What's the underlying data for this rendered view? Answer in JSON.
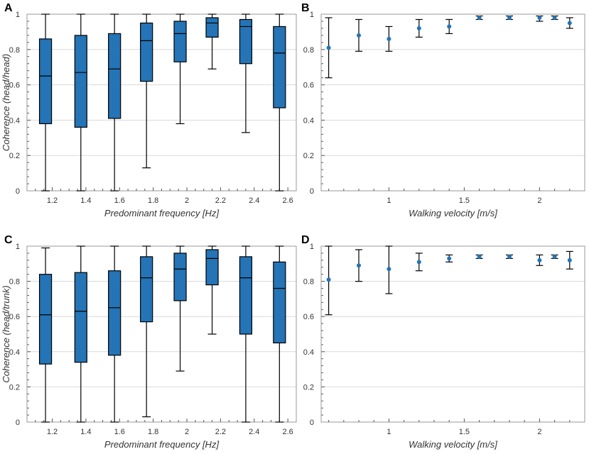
{
  "colors": {
    "box": "#2474b6",
    "point": "#2474b6",
    "grid": "#d9d9d9",
    "frame": "#9a9a9a"
  },
  "chart_data": [
    {
      "panel": "A",
      "type": "box",
      "xlabel": "Predominant frequency [Hz]",
      "ylabel": "Coherence (head/head)",
      "xlim": [
        1.05,
        2.65
      ],
      "ylim": [
        0,
        1
      ],
      "xticks": [
        1.2,
        1.4,
        1.6,
        1.8,
        2,
        2.2,
        2.4,
        2.6
      ],
      "xtick_labels": [
        "1.2",
        "1.4",
        "1.6",
        "1.8",
        "2",
        "2.2",
        "2.4",
        "2.6"
      ],
      "yticks": [
        0,
        0.2,
        0.4,
        0.6,
        0.8,
        1
      ],
      "ytick_labels": [
        "0",
        "0.2",
        "0.4",
        "0.6",
        "0.8",
        "1"
      ],
      "boxes": [
        {
          "x": 1.16,
          "min": 0.0,
          "q1": 0.38,
          "median": 0.65,
          "q3": 0.86,
          "max": 1.0
        },
        {
          "x": 1.37,
          "min": 0.0,
          "q1": 0.36,
          "median": 0.67,
          "q3": 0.88,
          "max": 1.0
        },
        {
          "x": 1.57,
          "min": 0.0,
          "q1": 0.41,
          "median": 0.69,
          "q3": 0.89,
          "max": 1.0
        },
        {
          "x": 1.76,
          "min": 0.13,
          "q1": 0.62,
          "median": 0.85,
          "q3": 0.95,
          "max": 1.0
        },
        {
          "x": 1.96,
          "min": 0.38,
          "q1": 0.73,
          "median": 0.89,
          "q3": 0.96,
          "max": 1.0
        },
        {
          "x": 2.15,
          "min": 0.69,
          "q1": 0.87,
          "median": 0.95,
          "q3": 0.98,
          "max": 1.0
        },
        {
          "x": 2.35,
          "min": 0.33,
          "q1": 0.72,
          "median": 0.93,
          "q3": 0.97,
          "max": 1.0
        },
        {
          "x": 2.55,
          "min": 0.0,
          "q1": 0.47,
          "median": 0.78,
          "q3": 0.93,
          "max": 1.0
        }
      ]
    },
    {
      "panel": "B",
      "type": "errorbar",
      "xlabel": "Walking velocity [m/s]",
      "ylabel": "",
      "xlim": [
        0.55,
        2.3
      ],
      "ylim": [
        0,
        1
      ],
      "xticks": [
        1,
        1.5,
        2
      ],
      "xtick_labels": [
        "1",
        "1.5",
        "2"
      ],
      "yticks": [
        0,
        0.2,
        0.4,
        0.6,
        0.8,
        1
      ],
      "ytick_labels": [
        "0",
        "0.2",
        "0.4",
        "0.6",
        "0.8",
        "1"
      ],
      "points": [
        {
          "x": 0.6,
          "y": 0.81,
          "low": 0.64,
          "high": 0.98
        },
        {
          "x": 0.8,
          "y": 0.88,
          "low": 0.79,
          "high": 0.97
        },
        {
          "x": 1.0,
          "y": 0.86,
          "low": 0.79,
          "high": 0.93
        },
        {
          "x": 1.2,
          "y": 0.92,
          "low": 0.87,
          "high": 0.97
        },
        {
          "x": 1.4,
          "y": 0.93,
          "low": 0.89,
          "high": 0.97
        },
        {
          "x": 1.6,
          "y": 0.98,
          "low": 0.97,
          "high": 0.99
        },
        {
          "x": 1.8,
          "y": 0.98,
          "low": 0.97,
          "high": 0.99
        },
        {
          "x": 2.0,
          "y": 0.98,
          "low": 0.96,
          "high": 0.99
        },
        {
          "x": 2.1,
          "y": 0.98,
          "low": 0.97,
          "high": 0.99
        },
        {
          "x": 2.2,
          "y": 0.95,
          "low": 0.92,
          "high": 0.98
        }
      ]
    },
    {
      "panel": "C",
      "type": "box",
      "xlabel": "Predominant frequency [Hz]",
      "ylabel": "Coherence (head/trunk)",
      "xlim": [
        1.05,
        2.65
      ],
      "ylim": [
        0,
        1
      ],
      "xticks": [
        1.2,
        1.4,
        1.6,
        1.8,
        2,
        2.2,
        2.4,
        2.6
      ],
      "xtick_labels": [
        "1.2",
        "1.4",
        "1.6",
        "1.8",
        "2",
        "2.2",
        "2.4",
        "2.6"
      ],
      "yticks": [
        0,
        0.2,
        0.4,
        0.6,
        0.8,
        1
      ],
      "ytick_labels": [
        "0",
        "0.2",
        "0.4",
        "0.6",
        "0.8",
        "1"
      ],
      "boxes": [
        {
          "x": 1.16,
          "min": 0.0,
          "q1": 0.33,
          "median": 0.61,
          "q3": 0.84,
          "max": 0.99
        },
        {
          "x": 1.37,
          "min": 0.0,
          "q1": 0.34,
          "median": 0.63,
          "q3": 0.85,
          "max": 1.0
        },
        {
          "x": 1.57,
          "min": 0.0,
          "q1": 0.38,
          "median": 0.65,
          "q3": 0.86,
          "max": 1.0
        },
        {
          "x": 1.76,
          "min": 0.03,
          "q1": 0.57,
          "median": 0.82,
          "q3": 0.94,
          "max": 1.0
        },
        {
          "x": 1.96,
          "min": 0.29,
          "q1": 0.69,
          "median": 0.87,
          "q3": 0.96,
          "max": 1.0
        },
        {
          "x": 2.15,
          "min": 0.5,
          "q1": 0.78,
          "median": 0.93,
          "q3": 0.98,
          "max": 1.0
        },
        {
          "x": 2.35,
          "min": 0.0,
          "q1": 0.5,
          "median": 0.82,
          "q3": 0.94,
          "max": 1.0
        },
        {
          "x": 2.55,
          "min": 0.0,
          "q1": 0.45,
          "median": 0.76,
          "q3": 0.91,
          "max": 1.0
        }
      ]
    },
    {
      "panel": "D",
      "type": "errorbar",
      "xlabel": "Walking velocity [m/s]",
      "ylabel": "",
      "xlim": [
        0.55,
        2.3
      ],
      "ylim": [
        0,
        1
      ],
      "xticks": [
        1,
        1.5,
        2
      ],
      "xtick_labels": [
        "1",
        "1.5",
        "2"
      ],
      "yticks": [
        0,
        0.2,
        0.4,
        0.6,
        0.8,
        1
      ],
      "ytick_labels": [
        "0",
        "0.2",
        "0.4",
        "0.6",
        "0.8",
        "1"
      ],
      "points": [
        {
          "x": 0.6,
          "y": 0.81,
          "low": 0.61,
          "high": 1.0
        },
        {
          "x": 0.8,
          "y": 0.89,
          "low": 0.8,
          "high": 0.98
        },
        {
          "x": 1.0,
          "y": 0.87,
          "low": 0.73,
          "high": 1.0
        },
        {
          "x": 1.2,
          "y": 0.91,
          "low": 0.86,
          "high": 0.96
        },
        {
          "x": 1.4,
          "y": 0.93,
          "low": 0.91,
          "high": 0.95
        },
        {
          "x": 1.6,
          "y": 0.94,
          "low": 0.93,
          "high": 0.95
        },
        {
          "x": 1.8,
          "y": 0.94,
          "low": 0.93,
          "high": 0.95
        },
        {
          "x": 2.0,
          "y": 0.92,
          "low": 0.89,
          "high": 0.95
        },
        {
          "x": 2.1,
          "y": 0.94,
          "low": 0.93,
          "high": 0.95
        },
        {
          "x": 2.2,
          "y": 0.92,
          "low": 0.87,
          "high": 0.97
        }
      ]
    }
  ]
}
